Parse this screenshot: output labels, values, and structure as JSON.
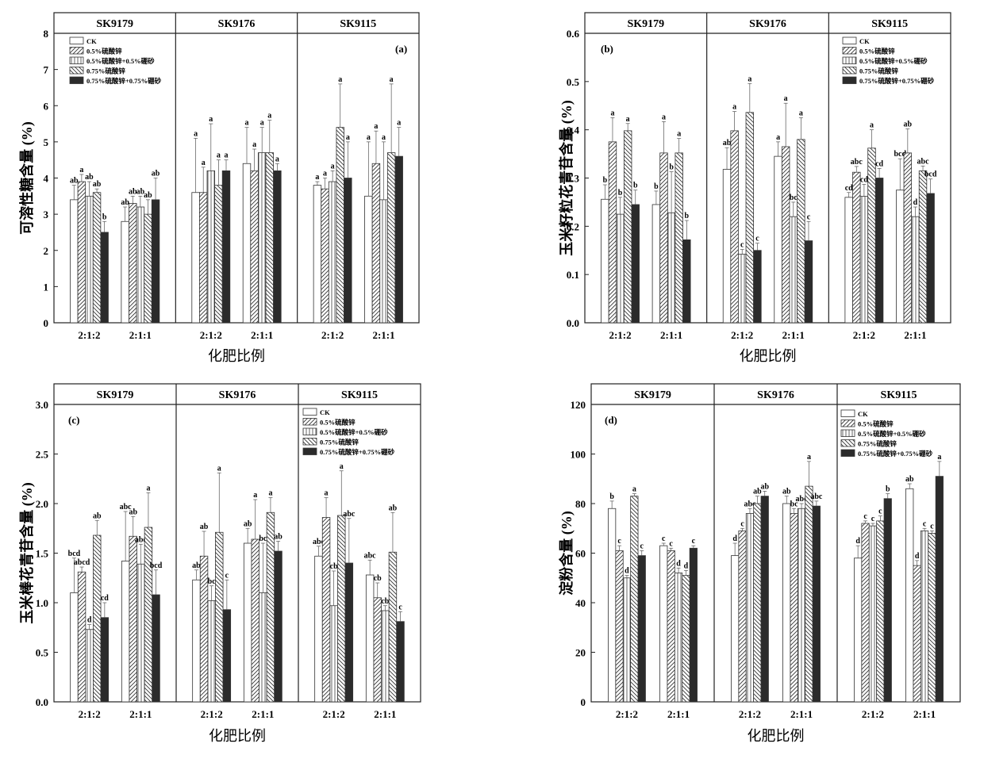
{
  "figure": {
    "background": "#ffffff",
    "bar_edge_color": "#333333",
    "solid_fill": "#2b2b2b"
  },
  "legend": [
    {
      "label": "CK",
      "pattern": "none"
    },
    {
      "label": "0.5%硫酸锌",
      "pattern": "diag"
    },
    {
      "label": "0.5%硫酸锌+0.5%硼砂",
      "pattern": "vert"
    },
    {
      "label": "0.75%硫酸锌",
      "pattern": "back"
    },
    {
      "label": "0.75%硫酸锌+0.75%硼砂",
      "pattern": "solid"
    }
  ],
  "chart_data": [
    {
      "type": "bar",
      "tag": "(a)",
      "ylabel": "可溶性糖含量 (%)",
      "xlabel": "化肥比例",
      "ylim": [
        0,
        8
      ],
      "yticks": [
        "0",
        "1",
        "2",
        "3",
        "4",
        "5",
        "6",
        "7",
        "8"
      ],
      "groups": [
        "SK9179",
        "SK9176",
        "SK9115"
      ],
      "categories": [
        "2:1:2",
        "2:1:1"
      ],
      "values": [
        [
          [
            3.4,
            3.9,
            3.5,
            3.6,
            2.5
          ],
          [
            2.8,
            3.3,
            3.2,
            3.0,
            3.4
          ]
        ],
        [
          [
            3.6,
            3.6,
            4.2,
            3.8,
            4.2
          ],
          [
            4.4,
            4.2,
            4.7,
            4.7,
            4.2
          ]
        ],
        [
          [
            3.8,
            3.7,
            3.9,
            5.4,
            4.0
          ],
          [
            3.5,
            4.4,
            3.4,
            4.7,
            4.6
          ]
        ]
      ],
      "errors": [
        [
          [
            0.4,
            0.2,
            0.4,
            0.1,
            0.3
          ],
          [
            0.4,
            0.2,
            0.3,
            0.4,
            0.6
          ]
        ],
        [
          [
            1.5,
            0.7,
            1.3,
            0.7,
            0.3
          ],
          [
            1.0,
            0.6,
            0.7,
            0.9,
            0.2
          ]
        ],
        [
          [
            0.1,
            0.3,
            0.3,
            1.2,
            1.0
          ],
          [
            1.5,
            0.9,
            1.6,
            1.9,
            0.8
          ]
        ]
      ],
      "letters": [
        [
          [
            "ab",
            "a",
            "ab",
            "ab",
            "b"
          ],
          [
            "ab",
            "ab",
            "ab",
            "ab",
            "ab"
          ]
        ],
        [
          [
            "a",
            "a",
            "a",
            "a",
            "a"
          ],
          [
            "a",
            "a",
            "a",
            "a",
            "a"
          ]
        ],
        [
          [
            "a",
            "a",
            "a",
            "a",
            "a"
          ],
          [
            "a",
            "a",
            "a",
            "a",
            "a"
          ]
        ]
      ],
      "legend_group": 0
    },
    {
      "type": "bar",
      "tag": "(b)",
      "ylabel": "玉米籽粒花青苷含量 (%)",
      "xlabel": "化肥比例",
      "ylim": [
        0,
        0.6
      ],
      "yticks": [
        "0.0",
        "0.1",
        "0.2",
        "0.3",
        "0.4",
        "0.5",
        "0.6"
      ],
      "groups": [
        "SK9179",
        "SK9176",
        "SK9115"
      ],
      "categories": [
        "2:1:2",
        "2:1:1"
      ],
      "values": [
        [
          [
            0.256,
            0.375,
            0.225,
            0.398,
            0.245
          ],
          [
            0.245,
            0.352,
            0.228,
            0.352,
            0.172
          ]
        ],
        [
          [
            0.318,
            0.398,
            0.142,
            0.436,
            0.15
          ],
          [
            0.345,
            0.365,
            0.22,
            0.38,
            0.17
          ]
        ],
        [
          [
            0.26,
            0.312,
            0.262,
            0.362,
            0.3
          ],
          [
            0.275,
            0.352,
            0.22,
            0.315,
            0.268
          ]
        ]
      ],
      "errors": [
        [
          [
            0.03,
            0.05,
            0.035,
            0.015,
            0.03
          ],
          [
            0.028,
            0.065,
            0.085,
            0.03,
            0.04
          ]
        ],
        [
          [
            0.045,
            0.04,
            0.01,
            0.06,
            0.015
          ],
          [
            0.03,
            0.09,
            0.03,
            0.045,
            0.04
          ]
        ],
        [
          [
            0.01,
            0.012,
            0.025,
            0.038,
            0.02
          ],
          [
            0.065,
            0.05,
            0.02,
            0.01,
            0.03
          ]
        ]
      ],
      "letters": [
        [
          [
            "b",
            "a",
            "b",
            "a",
            "b"
          ],
          [
            "b",
            "a",
            "b",
            "a",
            "b"
          ]
        ],
        [
          [
            "ab",
            "a",
            "c",
            "a",
            "c"
          ],
          [
            "a",
            "a",
            "bc",
            "a",
            "c"
          ]
        ],
        [
          [
            "cd",
            "abc",
            "cd",
            "a",
            "cd"
          ],
          [
            "bcd",
            "ab",
            "d",
            "abc",
            "bcd"
          ]
        ]
      ],
      "legend_group": 2
    },
    {
      "type": "bar",
      "tag": "(c)",
      "ylabel": "玉米棒花青苷含量 (%)",
      "xlabel": "化肥比例",
      "ylim": [
        0,
        3
      ],
      "yticks": [
        "0.0",
        "0.5",
        "1.0",
        "1.5",
        "2.0",
        "2.5",
        "3.0"
      ],
      "groups": [
        "SK9179",
        "SK9176",
        "SK9115"
      ],
      "categories": [
        "2:1:2",
        "2:1:1"
      ],
      "values": [
        [
          [
            1.1,
            1.31,
            0.73,
            1.68,
            0.85
          ],
          [
            1.42,
            1.67,
            1.39,
            1.76,
            1.08
          ]
        ],
        [
          [
            1.23,
            1.47,
            1.02,
            1.71,
            0.93
          ],
          [
            1.6,
            1.64,
            1.1,
            1.91,
            1.52
          ]
        ],
        [
          [
            1.47,
            1.86,
            0.97,
            1.88,
            1.4
          ],
          [
            1.28,
            1.05,
            0.92,
            1.51,
            0.81
          ]
        ]
      ],
      "errors": [
        [
          [
            0.35,
            0.05,
            0.05,
            0.15,
            0.15
          ],
          [
            0.5,
            0.2,
            0.2,
            0.35,
            0.25
          ]
        ],
        [
          [
            0.1,
            0.25,
            0.15,
            0.6,
            0.3
          ],
          [
            0.15,
            0.4,
            0.5,
            0.15,
            0.1
          ]
        ],
        [
          [
            0.1,
            0.2,
            0.35,
            0.45,
            0.45
          ],
          [
            0.15,
            0.15,
            0.05,
            0.4,
            0.1
          ]
        ]
      ],
      "letters": [
        [
          [
            "bcd",
            "abcd",
            "d",
            "ab",
            "cd"
          ],
          [
            "abc",
            "ab",
            "abc",
            "a",
            "bcd"
          ]
        ],
        [
          [
            "ab",
            "ab",
            "bc",
            "a",
            "c"
          ],
          [
            "ab",
            "a",
            "bc",
            "a",
            "ab"
          ]
        ],
        [
          [
            "abc",
            "a",
            "cb",
            "a",
            "abc"
          ],
          [
            "abc",
            "cb",
            "cb",
            "ab",
            "c"
          ]
        ]
      ],
      "legend_group": 2
    },
    {
      "type": "bar",
      "tag": "(d)",
      "ylabel": "淀粉含量 (%)",
      "xlabel": "化肥比例",
      "ylim": [
        0,
        120
      ],
      "yticks": [
        "0",
        "20",
        "40",
        "60",
        "80",
        "100",
        "120"
      ],
      "groups": [
        "SK9179",
        "SK9176",
        "SK9115"
      ],
      "categories": [
        "2:1:2",
        "2:1:1"
      ],
      "values": [
        [
          [
            78,
            61,
            50,
            83,
            59
          ],
          [
            63,
            61,
            52,
            51,
            62
          ]
        ],
        [
          [
            59,
            69,
            76,
            80,
            83
          ],
          [
            80,
            76,
            78,
            87,
            79
          ]
        ],
        [
          [
            58,
            72,
            71,
            73,
            82
          ],
          [
            86,
            55,
            69,
            68,
            91
          ]
        ]
      ],
      "errors": [
        [
          [
            3,
            2,
            1,
            1,
            2
          ],
          [
            1,
            1,
            2,
            2,
            1
          ]
        ],
        [
          [
            5,
            1,
            2,
            3,
            2
          ],
          [
            3,
            2,
            2,
            10,
            2
          ]
        ],
        [
          [
            5,
            1,
            1,
            2,
            2
          ],
          [
            2,
            2,
            1,
            1,
            6
          ]
        ]
      ],
      "letters": [
        [
          [
            "b",
            "c",
            "d",
            "a",
            "c"
          ],
          [
            "c",
            "c",
            "d",
            "d",
            "c"
          ]
        ],
        [
          [
            "d",
            "c",
            "abc",
            "ab",
            "ab"
          ],
          [
            "ab",
            "bc",
            "abc",
            "a",
            "abc"
          ]
        ],
        [
          [
            "d",
            "c",
            "c",
            "c",
            "b"
          ],
          [
            "ab",
            "d",
            "c",
            "c",
            "a"
          ]
        ]
      ],
      "legend_group": 2
    }
  ]
}
